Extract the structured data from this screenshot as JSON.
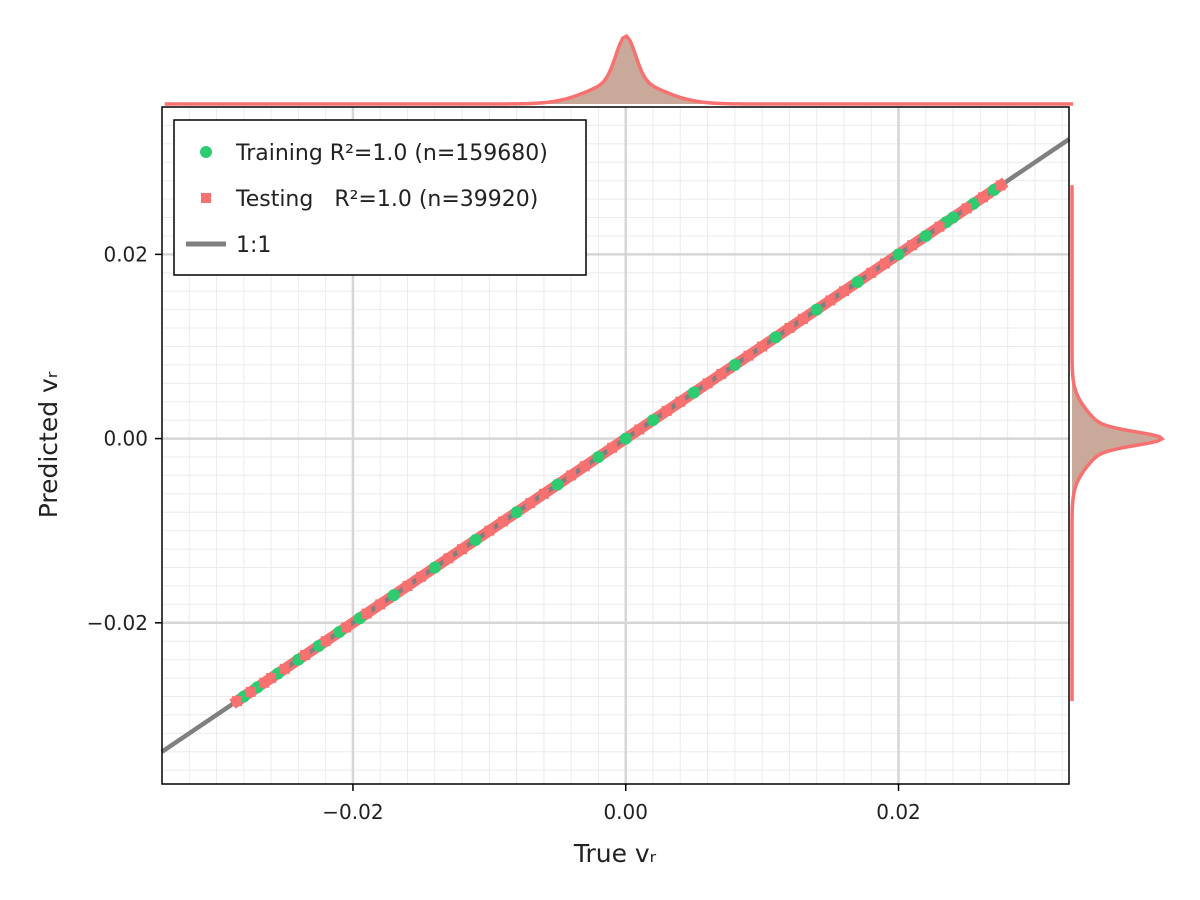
{
  "chart_data": {
    "type": "scatter",
    "title": "",
    "xlabel": "True vᵣ",
    "ylabel": "Predicted vᵣ",
    "xlim": [
      -0.034,
      0.0325
    ],
    "ylim": [
      -0.0375,
      0.036
    ],
    "xticks": [
      {
        "value": -0.02,
        "label": "−0.02"
      },
      {
        "value": 0.0,
        "label": "0.00"
      },
      {
        "value": 0.02,
        "label": "0.02"
      }
    ],
    "yticks": [
      {
        "value": -0.02,
        "label": "−0.02"
      },
      {
        "value": 0.0,
        "label": "0.00"
      },
      {
        "value": 0.02,
        "label": "0.02"
      }
    ],
    "minor_step": 0.002,
    "grid": true,
    "legend_position": "top-left",
    "series": [
      {
        "name": "Training R²=1.0 (n=159680)",
        "marker": "circle",
        "color": "#2ecc71",
        "x": [
          -0.028,
          -0.027,
          -0.0255,
          -0.024,
          -0.0225,
          -0.021,
          -0.0195,
          -0.017,
          -0.014,
          -0.011,
          -0.008,
          -0.005,
          -0.002,
          0.0,
          0.002,
          0.005,
          0.008,
          0.011,
          0.014,
          0.017,
          0.02,
          0.022,
          0.0235,
          0.024,
          0.0255,
          0.027
        ],
        "y": [
          -0.028,
          -0.027,
          -0.0255,
          -0.024,
          -0.0225,
          -0.021,
          -0.0195,
          -0.017,
          -0.014,
          -0.011,
          -0.008,
          -0.005,
          -0.002,
          0.0,
          0.002,
          0.005,
          0.008,
          0.011,
          0.014,
          0.017,
          0.02,
          0.022,
          0.0235,
          0.024,
          0.0255,
          0.027
        ]
      },
      {
        "name": "Testing   R²=1.0 (n=39920)",
        "marker": "square",
        "color": "#f87171",
        "x": [
          -0.0285,
          -0.0275,
          -0.0265,
          -0.026,
          -0.025,
          -0.0235,
          -0.022,
          -0.0205,
          -0.019,
          -0.018,
          -0.016,
          -0.015,
          -0.013,
          -0.012,
          -0.01,
          -0.009,
          -0.007,
          -0.006,
          -0.004,
          -0.003,
          -0.001,
          0.001,
          0.003,
          0.004,
          0.006,
          0.007,
          0.009,
          0.01,
          0.012,
          0.013,
          0.015,
          0.016,
          0.018,
          0.019,
          0.021,
          0.023,
          0.025,
          0.0262,
          0.0275
        ],
        "y": [
          -0.0285,
          -0.0275,
          -0.0265,
          -0.026,
          -0.025,
          -0.0235,
          -0.022,
          -0.0205,
          -0.019,
          -0.018,
          -0.016,
          -0.015,
          -0.013,
          -0.012,
          -0.01,
          -0.009,
          -0.007,
          -0.006,
          -0.004,
          -0.003,
          -0.001,
          0.001,
          0.003,
          0.004,
          0.006,
          0.007,
          0.009,
          0.01,
          0.012,
          0.013,
          0.015,
          0.016,
          0.018,
          0.019,
          0.021,
          0.023,
          0.025,
          0.0262,
          0.0275
        ]
      }
    ],
    "reference_line": {
      "name": "1:1",
      "color": "#808080"
    },
    "band": {
      "color": "#f87171",
      "x_range": [
        -0.0285,
        0.0275
      ]
    },
    "marginal_kde": {
      "fill": "#c9a999",
      "stroke": "#f87171",
      "range": [
        -0.0285,
        0.0275
      ],
      "peak": 0.0,
      "sigma_narrow": 0.0007,
      "sigma_wide": 0.0025,
      "narrow_weight": 0.65
    }
  }
}
